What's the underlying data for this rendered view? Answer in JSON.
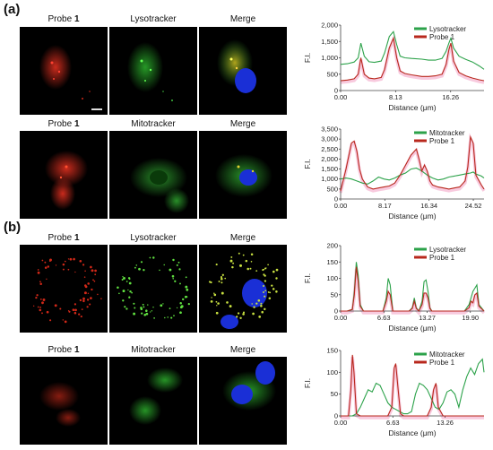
{
  "panel_a": {
    "label": "(a)",
    "row1": {
      "label1": "Probe ",
      "label1_bold": "1",
      "label2": "Lysotracker",
      "label3": "Merge"
    },
    "row2": {
      "label1": "Probe ",
      "label1_bold": "1",
      "label2": "Mitotracker",
      "label3": "Merge"
    }
  },
  "panel_b": {
    "label": "(b)",
    "row1": {
      "label1": "Probe ",
      "label1_bold": "1",
      "label2": "Lysotracker",
      "label3": "Merge"
    },
    "row2": {
      "label1": "Probe ",
      "label1_bold": "1",
      "label2": "Mitotracker",
      "label3": "Merge"
    }
  },
  "colors": {
    "green": "#2ca24a",
    "red": "#b8281d",
    "pink_shadow": "#f4a6c8",
    "blue_nucleus": "#1a2fd6"
  },
  "chart_data": [
    {
      "type": "line",
      "xlabel": "Distance (μm)",
      "ylabel": "F.I.",
      "xticks": [
        "0.00",
        "8.13",
        "16.26"
      ],
      "xlim": [
        0,
        21.2
      ],
      "yticks": [
        "0",
        "500",
        "1,000",
        "1,500",
        "2,000"
      ],
      "ylim": [
        0,
        2000
      ],
      "legend": "top-right",
      "series": [
        {
          "name": "Lysotracker",
          "color": "#2ca24a",
          "x": [
            0,
            1,
            2,
            2.6,
            3,
            3.5,
            4.2,
            5,
            6,
            6.5,
            7.2,
            7.8,
            8.3,
            8.8,
            9.5,
            10.5,
            12,
            13,
            14,
            15,
            15.6,
            16,
            16.3,
            16.7,
            17.5,
            18.5,
            19.5,
            20.5,
            21.2
          ],
          "y": [
            800,
            820,
            870,
            1000,
            1450,
            1050,
            880,
            860,
            900,
            1150,
            1650,
            1800,
            1400,
            1050,
            1000,
            980,
            960,
            930,
            930,
            980,
            1200,
            1450,
            1600,
            1300,
            1050,
            950,
            870,
            750,
            650
          ]
        },
        {
          "name": "Probe 1",
          "color": "#b8281d",
          "x": [
            0,
            1,
            2,
            2.6,
            3,
            3.5,
            4.2,
            5,
            6,
            6.5,
            7.2,
            7.8,
            8.3,
            8.8,
            9.5,
            10.5,
            12,
            13,
            14,
            15,
            15.6,
            16,
            16.3,
            16.7,
            17.5,
            18.5,
            19.5,
            20.5,
            21.2
          ],
          "y": [
            300,
            320,
            360,
            500,
            1000,
            500,
            380,
            360,
            400,
            650,
            1300,
            1600,
            1000,
            600,
            520,
            480,
            430,
            430,
            450,
            500,
            800,
            1250,
            1450,
            900,
            550,
            450,
            380,
            330,
            300
          ]
        }
      ]
    },
    {
      "type": "line",
      "xlabel": "Distance (μm)",
      "ylabel": "F.I.",
      "xticks": [
        "0.00",
        "8.17",
        "16.34",
        "24.52"
      ],
      "xlim": [
        0,
        26.5
      ],
      "yticks": [
        "0",
        "500",
        "1,000",
        "1,500",
        "2,000",
        "2,500",
        "3,000",
        "3,500"
      ],
      "ylim": [
        0,
        3500
      ],
      "legend": "top-right",
      "series": [
        {
          "name": "Mitotracker",
          "color": "#2ca24a",
          "x": [
            0,
            1,
            2,
            3,
            4,
            5,
            6,
            7,
            8,
            9,
            10,
            11,
            12,
            13,
            14,
            15,
            16,
            17,
            18,
            19,
            20,
            21,
            22,
            23,
            24,
            24.5,
            25,
            26,
            26.5
          ],
          "y": [
            1000,
            1050,
            1000,
            900,
            800,
            750,
            900,
            1100,
            1000,
            950,
            1050,
            1200,
            1300,
            1500,
            1550,
            1400,
            1200,
            1050,
            950,
            1000,
            1100,
            1150,
            1200,
            1250,
            1300,
            1350,
            1250,
            1150,
            1050
          ]
        },
        {
          "name": "Probe 1",
          "color": "#b8281d",
          "x": [
            0,
            1,
            2,
            2.5,
            3,
            3.5,
            4,
            5,
            6,
            7,
            8,
            9,
            10,
            11,
            12,
            13,
            14,
            14.5,
            15,
            15.5,
            16,
            16.5,
            17,
            18,
            19,
            20,
            21,
            22,
            23,
            23.5,
            24,
            24.5,
            25,
            26,
            26.5
          ],
          "y": [
            400,
            1500,
            2800,
            2900,
            2400,
            1500,
            1000,
            600,
            500,
            550,
            600,
            650,
            800,
            1200,
            1700,
            2200,
            2500,
            2000,
            1400,
            1700,
            1400,
            900,
            700,
            600,
            550,
            500,
            550,
            600,
            900,
            1600,
            3100,
            2800,
            1200,
            700,
            500
          ]
        }
      ]
    },
    {
      "type": "line",
      "xlabel": "Distance (μm)",
      "ylabel": "F.I.",
      "xticks": [
        "0.00",
        "6.63",
        "13.27",
        "19.90"
      ],
      "xlim": [
        0,
        22
      ],
      "yticks": [
        "0",
        "50",
        "100",
        "150",
        "200"
      ],
      "ylim": [
        0,
        200
      ],
      "legend": "top-right",
      "series": [
        {
          "name": "Lysotracker",
          "color": "#2ca24a",
          "x": [
            0,
            1,
            1.8,
            2.1,
            2.4,
            2.7,
            3,
            3.5,
            5,
            6.5,
            7.0,
            7.3,
            7.6,
            8,
            9,
            10.5,
            11.0,
            11.3,
            11.6,
            12,
            12.5,
            12.8,
            13.1,
            13.4,
            13.7,
            14,
            15.5,
            17,
            19,
            19.7,
            20.0,
            20.3,
            20.6,
            20.9,
            21.2,
            22
          ],
          "y": [
            0,
            0,
            5,
            60,
            150,
            110,
            20,
            0,
            0,
            0,
            40,
            100,
            80,
            0,
            0,
            0,
            10,
            40,
            10,
            0,
            30,
            90,
            95,
            60,
            10,
            0,
            0,
            0,
            0,
            20,
            40,
            60,
            70,
            80,
            20,
            0
          ]
        },
        {
          "name": "Probe 1",
          "color": "#b8281d",
          "x": [
            0,
            1,
            1.8,
            2.1,
            2.4,
            2.7,
            3,
            3.5,
            5,
            6.5,
            7.0,
            7.3,
            7.6,
            8,
            9,
            10.5,
            11.0,
            11.3,
            11.6,
            12,
            12.5,
            12.8,
            13.1,
            13.4,
            13.7,
            14,
            15.5,
            17,
            19,
            19.7,
            20.0,
            20.3,
            20.6,
            20.9,
            21.2,
            22
          ],
          "y": [
            0,
            0,
            5,
            50,
            135,
            90,
            15,
            0,
            0,
            0,
            30,
            60,
            50,
            0,
            0,
            0,
            8,
            30,
            8,
            0,
            20,
            55,
            55,
            40,
            8,
            0,
            0,
            0,
            0,
            10,
            30,
            25,
            50,
            55,
            15,
            0
          ]
        }
      ]
    },
    {
      "type": "line",
      "xlabel": "Distance (μm)",
      "ylabel": "F.I.",
      "xticks": [
        "0.00",
        "6.63",
        "13.26"
      ],
      "xlim": [
        0,
        18.2
      ],
      "yticks": [
        "0",
        "50",
        "100",
        "150"
      ],
      "ylim": [
        0,
        150
      ],
      "legend": "top-right",
      "series": [
        {
          "name": "Mitotracker",
          "color": "#2ca24a",
          "x": [
            0,
            1,
            1.5,
            2,
            2.5,
            3,
            3.5,
            4,
            4.5,
            5,
            5.5,
            6,
            6.5,
            7,
            7.5,
            8,
            8.5,
            9,
            9.5,
            10,
            10.5,
            11,
            11.5,
            12,
            12.5,
            13,
            13.5,
            14,
            14.5,
            15,
            15.5,
            16,
            16.5,
            17,
            17.5,
            18,
            18.2
          ],
          "y": [
            0,
            0,
            0,
            5,
            20,
            40,
            60,
            55,
            75,
            70,
            50,
            30,
            20,
            15,
            10,
            5,
            5,
            10,
            50,
            75,
            70,
            60,
            40,
            20,
            15,
            30,
            55,
            60,
            50,
            20,
            60,
            90,
            110,
            95,
            120,
            130,
            100
          ]
        },
        {
          "name": "Probe 1",
          "color": "#b8281d",
          "x": [
            0,
            1,
            1.3,
            1.5,
            1.7,
            2,
            2.5,
            3,
            4,
            5,
            6,
            6.5,
            6.8,
            7.0,
            7.3,
            7.6,
            8,
            9,
            10,
            11,
            11.5,
            11.8,
            12.1,
            12.4,
            13,
            14,
            15,
            16,
            17,
            18,
            18.2
          ],
          "y": [
            0,
            0,
            60,
            140,
            100,
            5,
            0,
            0,
            0,
            0,
            0,
            20,
            110,
            120,
            60,
            5,
            0,
            0,
            0,
            0,
            20,
            60,
            75,
            20,
            0,
            0,
            0,
            0,
            0,
            0,
            0
          ]
        }
      ]
    }
  ]
}
